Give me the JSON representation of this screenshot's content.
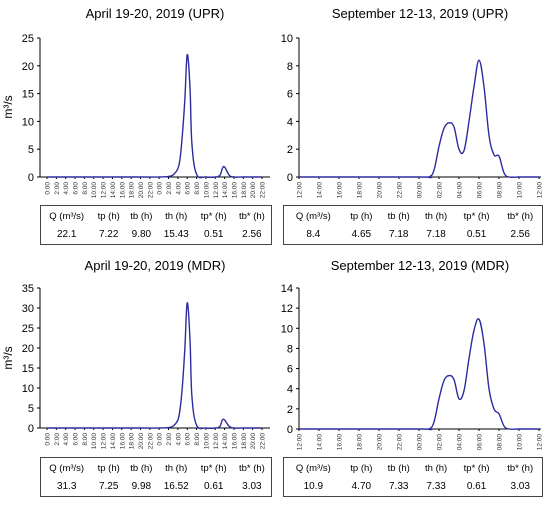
{
  "y_label": "m³/s",
  "stats_headers": [
    "Q (m³/s)",
    "tp (h)",
    "tb (h)",
    "th (h)",
    "tp* (h)",
    "tb* (h)"
  ],
  "chart_data": [
    {
      "type": "line",
      "title": "April 19-20, 2019 (UPR)",
      "ylabel": "m³/s",
      "ylim": [
        0,
        25
      ],
      "yticks": [
        0,
        5,
        10,
        15,
        20,
        25
      ],
      "x_tick_labels": [
        "0:00",
        "2:00",
        "4:00",
        "6:00",
        "8:00",
        "10:00",
        "12:00",
        "14:00",
        "16:00",
        "18:00",
        "20:00",
        "22:00",
        "0:00",
        "2:00",
        "4:00",
        "6:00",
        "8:00",
        "10:00",
        "12:00",
        "14:00",
        "16:00",
        "18:00",
        "20:00",
        "22:00"
      ],
      "series": [
        {
          "x": [
            0,
            20,
            24,
            26,
            27,
            28,
            28.5,
            29,
            29.5,
            30,
            30.6,
            31,
            32,
            34,
            36,
            37,
            37.5,
            38,
            39,
            40,
            42,
            46
          ],
          "y": [
            0,
            0,
            0,
            0.1,
            0.4,
            1.5,
            3.5,
            8,
            14,
            22,
            16,
            6,
            0.5,
            0,
            0,
            0.3,
            1.5,
            1.8,
            0.3,
            0,
            0,
            0
          ]
        }
      ],
      "stats": [
        "22.1",
        "7.22",
        "9.80",
        "15.43",
        "0.51",
        "2.56"
      ]
    },
    {
      "type": "line",
      "title": "September 12-13, 2019 (UPR)",
      "ylabel": "",
      "ylim": [
        0,
        10
      ],
      "yticks": [
        0,
        2,
        4,
        6,
        8,
        10
      ],
      "x_tick_labels": [
        "12:00",
        "14:00",
        "16:00",
        "18:00",
        "20:00",
        "22:00",
        "00:00",
        "02:00",
        "04:00",
        "06:00",
        "08:00",
        "10:00",
        "12:00"
      ],
      "series": [
        {
          "x": [
            0,
            12,
            13,
            13.5,
            14,
            14.5,
            15,
            15.5,
            16,
            16.5,
            17,
            17.5,
            18,
            18.5,
            19,
            19.5,
            20,
            20.5,
            21,
            22,
            24
          ],
          "y": [
            0,
            0,
            0,
            0.5,
            2.2,
            3.5,
            3.9,
            3.6,
            2.0,
            1.9,
            4.0,
            6.5,
            8.4,
            6.5,
            3.0,
            1.6,
            1.5,
            0.3,
            0,
            0,
            0
          ]
        }
      ],
      "stats": [
        "8.4",
        "4.65",
        "7.18",
        "7.18",
        "0.51",
        "2.56"
      ]
    },
    {
      "type": "line",
      "title": "April 19-20, 2019 (MDR)",
      "ylabel": "m³/s",
      "ylim": [
        0,
        35
      ],
      "yticks": [
        0,
        5,
        10,
        15,
        20,
        25,
        30,
        35
      ],
      "x_tick_labels": [
        "0:00",
        "2:00",
        "4:00",
        "6:00",
        "8:00",
        "10:00",
        "12:00",
        "14:00",
        "16:00",
        "18:00",
        "20:00",
        "22:00",
        "0:00",
        "2:00",
        "4:00",
        "6:00",
        "8:00",
        "10:00",
        "12:00",
        "14:00",
        "16:00",
        "18:00",
        "20:00",
        "22:00"
      ],
      "series": [
        {
          "x": [
            0,
            20,
            24,
            26,
            27,
            28,
            28.5,
            29,
            29.5,
            30,
            30.6,
            31,
            32,
            34,
            36,
            37,
            37.5,
            38,
            39,
            40,
            42,
            46
          ],
          "y": [
            0,
            0,
            0,
            0.1,
            0.5,
            2,
            5,
            11,
            20,
            31.3,
            22,
            8,
            0.7,
            0,
            0,
            0.4,
            2,
            2,
            0.4,
            0,
            0,
            0
          ]
        }
      ],
      "stats": [
        "31.3",
        "7.25",
        "9.98",
        "16.52",
        "0.61",
        "3.03"
      ]
    },
    {
      "type": "line",
      "title": "September 12-13, 2019 (MDR)",
      "ylabel": "",
      "ylim": [
        0,
        14
      ],
      "yticks": [
        0,
        2,
        4,
        6,
        8,
        10,
        12,
        14
      ],
      "x_tick_labels": [
        "12:00",
        "14:00",
        "16:00",
        "18:00",
        "20:00",
        "22:00",
        "00:00",
        "02:00",
        "04:00",
        "06:00",
        "08:00",
        "10:00",
        "12:00"
      ],
      "series": [
        {
          "x": [
            0,
            12,
            13,
            13.5,
            14,
            14.5,
            15,
            15.5,
            16,
            16.5,
            17,
            17.5,
            18,
            18.5,
            19,
            19.5,
            20,
            20.5,
            21,
            22,
            24
          ],
          "y": [
            0,
            0,
            0,
            0.7,
            3.0,
            4.8,
            5.3,
            4.9,
            3.0,
            3.8,
            7.0,
            9.8,
            10.9,
            8.5,
            4.0,
            2.0,
            1.5,
            0.3,
            0,
            0,
            0
          ]
        }
      ],
      "stats": [
        "10.9",
        "4.70",
        "7.33",
        "7.33",
        "0.61",
        "3.03"
      ]
    }
  ]
}
